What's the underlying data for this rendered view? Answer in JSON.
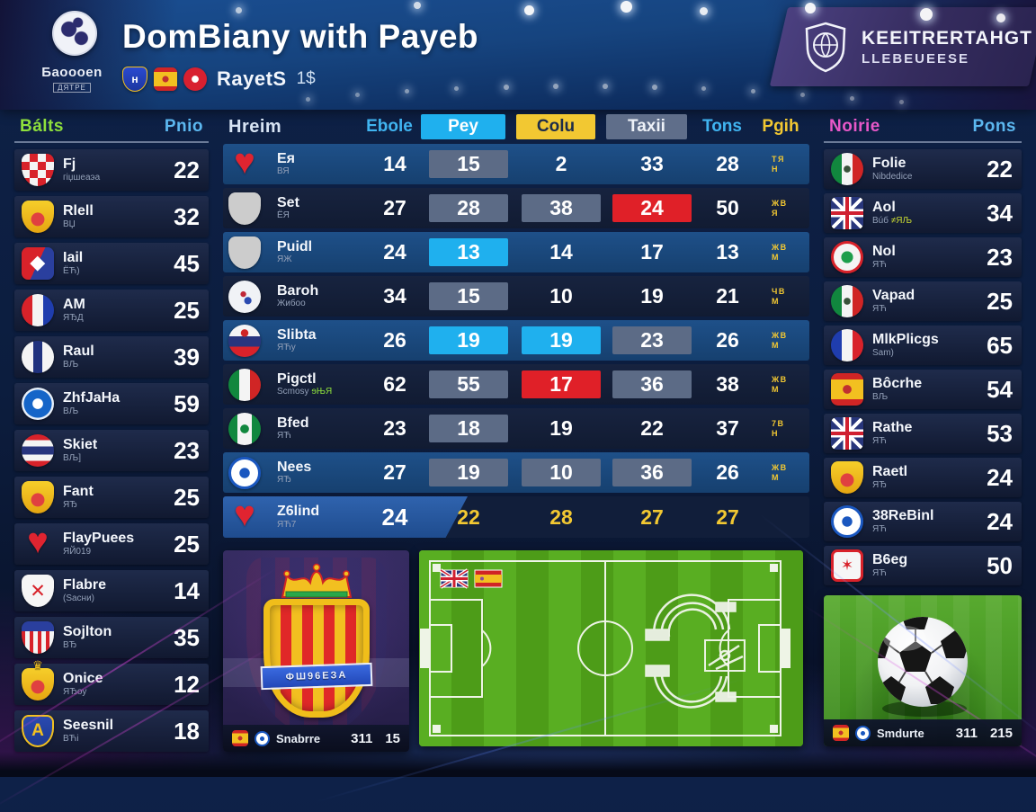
{
  "header": {
    "logo_sub": "Баоооen",
    "logo_sub2": "ДЯТРЕ",
    "title": "DomBiany with Payeb",
    "club_icons": [
      "crest-blue",
      "crest-spain",
      "circ-red-emblem"
    ],
    "subtitle": "RayetS",
    "subtitle_value": "1$",
    "badge": {
      "line1": "KEEITRERTAHGT",
      "line2": "LLEBEUEESE"
    }
  },
  "left_panel": {
    "name_header": "Bálts",
    "value_header": "Pnio",
    "rows": [
      {
        "icon": "crest-checks",
        "name": "Fj",
        "sub": "гіџшеаэа",
        "value": "22"
      },
      {
        "icon": "crest-gold",
        "name": "Rlell",
        "sub": "ВЏ",
        "value": "32"
      },
      {
        "icon": "hex-redblue",
        "name": "Iail",
        "sub": "ЁЋ)",
        "value": "45"
      },
      {
        "icon": "circ-rwb-v",
        "name": "AM",
        "sub": "ЯЂД",
        "value": "25"
      },
      {
        "icon": "circ-navy-stripe",
        "name": "Raul",
        "sub": "ВЉ",
        "value": "39"
      },
      {
        "icon": "circ-blue-emblem",
        "name": "ZhfJaHa",
        "sub": "ВЉ",
        "value": "59"
      },
      {
        "icon": "circ-thai",
        "name": "Skiet",
        "sub": "ВЉ]",
        "value": "23"
      },
      {
        "icon": "crest-gold",
        "name": "Fant",
        "sub": "ЯЂ",
        "value": "25"
      },
      {
        "icon": "heart-red",
        "name": "FlayPuees",
        "sub": "ЯЙ019",
        "value": "25"
      },
      {
        "icon": "shield-white-redx",
        "name": "Flabre",
        "sub": "(Ѕасни)",
        "value": "14"
      },
      {
        "icon": "shield-stripes-chief",
        "name": "Sojlton",
        "sub": "ВЂ",
        "value": "35"
      },
      {
        "icon": "crest-gold-crown",
        "name": "Onice",
        "sub": "ЯЂoy",
        "value": "12"
      },
      {
        "icon": "shield-blue-A",
        "name": "Seesnil",
        "sub": "ВЋi",
        "value": "18"
      }
    ]
  },
  "center_table": {
    "headers": {
      "team": "Hreim",
      "c1": "Ebole",
      "c2": "Pey",
      "c3": "Colu",
      "c4": "Taxii",
      "c5": "Tons",
      "c6": "Pgih"
    },
    "rows": [
      {
        "icon": "heart-red",
        "name": "Ея",
        "sub": "ВЯ",
        "tone": "medium",
        "cells": [
          {
            "v": "14",
            "box": "none"
          },
          {
            "v": "15",
            "box": "gray"
          },
          {
            "v": "2",
            "box": "none"
          },
          {
            "v": "33",
            "box": "none"
          },
          {
            "v": "28",
            "box": "none"
          }
        ],
        "badge": "TЯ\nН"
      },
      {
        "icon": "shield-bluered",
        "name": "Set",
        "sub": "ЁЯ",
        "tone": "dark",
        "cells": [
          {
            "v": "27",
            "box": "none"
          },
          {
            "v": "28",
            "box": "gray"
          },
          {
            "v": "38",
            "box": "gray"
          },
          {
            "v": "24",
            "box": "red"
          },
          {
            "v": "50",
            "box": "none"
          }
        ],
        "badge": "ЖВ\nЯ"
      },
      {
        "icon": "shield-rw-stripes",
        "name": "Puidl",
        "sub": "ЯЖ",
        "tone": "medium",
        "cells": [
          {
            "v": "24",
            "box": "none"
          },
          {
            "v": "13",
            "box": "cyan"
          },
          {
            "v": "14",
            "box": "none"
          },
          {
            "v": "17",
            "box": "none"
          },
          {
            "v": "13",
            "box": "none"
          }
        ],
        "badge": "ЖВ\nМ"
      },
      {
        "icon": "circ-white",
        "name": "Baroh",
        "sub": "Жибоо",
        "tone": "dark",
        "cells": [
          {
            "v": "34",
            "box": "none"
          },
          {
            "v": "15",
            "box": "gray"
          },
          {
            "v": "10",
            "box": "none"
          },
          {
            "v": "19",
            "box": "none"
          },
          {
            "v": "21",
            "box": "none"
          }
        ],
        "badge": "ЧВ\nМ"
      },
      {
        "icon": "circ-russia",
        "name": "Slibta",
        "sub": "ЯЋy",
        "tone": "medium",
        "cells": [
          {
            "v": "26",
            "box": "none"
          },
          {
            "v": "19",
            "box": "cyan"
          },
          {
            "v": "19",
            "box": "cyan"
          },
          {
            "v": "23",
            "box": "gray"
          },
          {
            "v": "26",
            "box": "none"
          }
        ],
        "badge": "ЖВ\nМ"
      },
      {
        "icon": "circ-italy",
        "name": "Pigctl",
        "sub": "Scmosy",
        "sub2": "ɘЊЯ",
        "tone": "dark",
        "cells": [
          {
            "v": "62",
            "box": "none"
          },
          {
            "v": "55",
            "box": "gray"
          },
          {
            "v": "17",
            "box": "red"
          },
          {
            "v": "36",
            "box": "gray"
          },
          {
            "v": "38",
            "box": "none"
          }
        ],
        "badge": "ЖВ\nМ"
      },
      {
        "icon": "circ-green-wg",
        "name": "Bfed",
        "sub": "ЯЋ",
        "tone": "dark",
        "cells": [
          {
            "v": "23",
            "box": "none"
          },
          {
            "v": "18",
            "box": "gray"
          },
          {
            "v": "19",
            "box": "none"
          },
          {
            "v": "22",
            "box": "none"
          },
          {
            "v": "37",
            "box": "none"
          }
        ],
        "badge": "7В\nН"
      },
      {
        "icon": "circ-blue-ring",
        "name": "Nees",
        "sub": "ЯЂ",
        "tone": "medium",
        "cells": [
          {
            "v": "27",
            "box": "none"
          },
          {
            "v": "19",
            "box": "gray"
          },
          {
            "v": "10",
            "box": "gray"
          },
          {
            "v": "36",
            "box": "gray"
          },
          {
            "v": "26",
            "box": "none"
          }
        ],
        "badge": "ЖВ\nМ"
      }
    ],
    "summary": {
      "icon": "heart-red",
      "name": "Z6lind",
      "sub": "ЯЋ7",
      "lead": "24",
      "cells": [
        "22",
        "28",
        "27",
        "27"
      ]
    }
  },
  "right_panel": {
    "name_header": "Noirie",
    "value_header": "Pons",
    "rows": [
      {
        "icon": "circ-mexico",
        "name": "Folie",
        "sub": "Nibdedice",
        "value": "22"
      },
      {
        "icon": "sq-ujack",
        "name": "Aol",
        "sub": "Вúб",
        "sub2": "≠ЯЉ",
        "sub2_color": "lime",
        "value": "34"
      },
      {
        "icon": "circ-red-green",
        "name": "Nol",
        "sub": "ЯЋ",
        "value": "23"
      },
      {
        "icon": "circ-mexico",
        "name": "Vapad",
        "sub": "ЯЋ",
        "value": "25"
      },
      {
        "icon": "circ-france",
        "name": "MlkPlicgs",
        "sub": "Sam)",
        "value": "65"
      },
      {
        "icon": "crest-spain",
        "name": "Bôcrhe",
        "sub": "ВЉ",
        "value": "54"
      },
      {
        "icon": "sq-ujack",
        "name": "Rathe",
        "sub": "ЯЋ",
        "value": "53"
      },
      {
        "icon": "crest-gold",
        "name": "Raetl",
        "sub": "ЯЂ",
        "value": "24"
      },
      {
        "icon": "circ-blue-ring",
        "name": "38ReBinl",
        "sub": "ЯЋ",
        "value": "24"
      },
      {
        "icon": "hex-red-cross",
        "name": "B6eg",
        "sub": "ЯЋ",
        "value": "50"
      }
    ]
  },
  "bottom": {
    "crest_card": {
      "banner": "ФШ96ЕЗА",
      "bar": {
        "icons": [
          "crest-spain",
          "circ-blue-ring"
        ],
        "label": "Snabrre",
        "values": [
          "311",
          "15"
        ]
      }
    },
    "pitch_card": {
      "flags": [
        "united-kingdom",
        "spain"
      ]
    },
    "ball_card": {
      "bar": {
        "icons": [
          "crest-spain",
          "circ-blue-ring"
        ],
        "label": "Smdurte",
        "values": [
          "311",
          "215"
        ]
      }
    }
  },
  "colors": {
    "accent_cyan": "#1fb0ee",
    "accent_yellow": "#f2c832",
    "accent_red": "#e02028",
    "accent_green": "#8ee03c",
    "accent_pink": "#e858c8",
    "accent_blue": "#5cb8f0"
  }
}
